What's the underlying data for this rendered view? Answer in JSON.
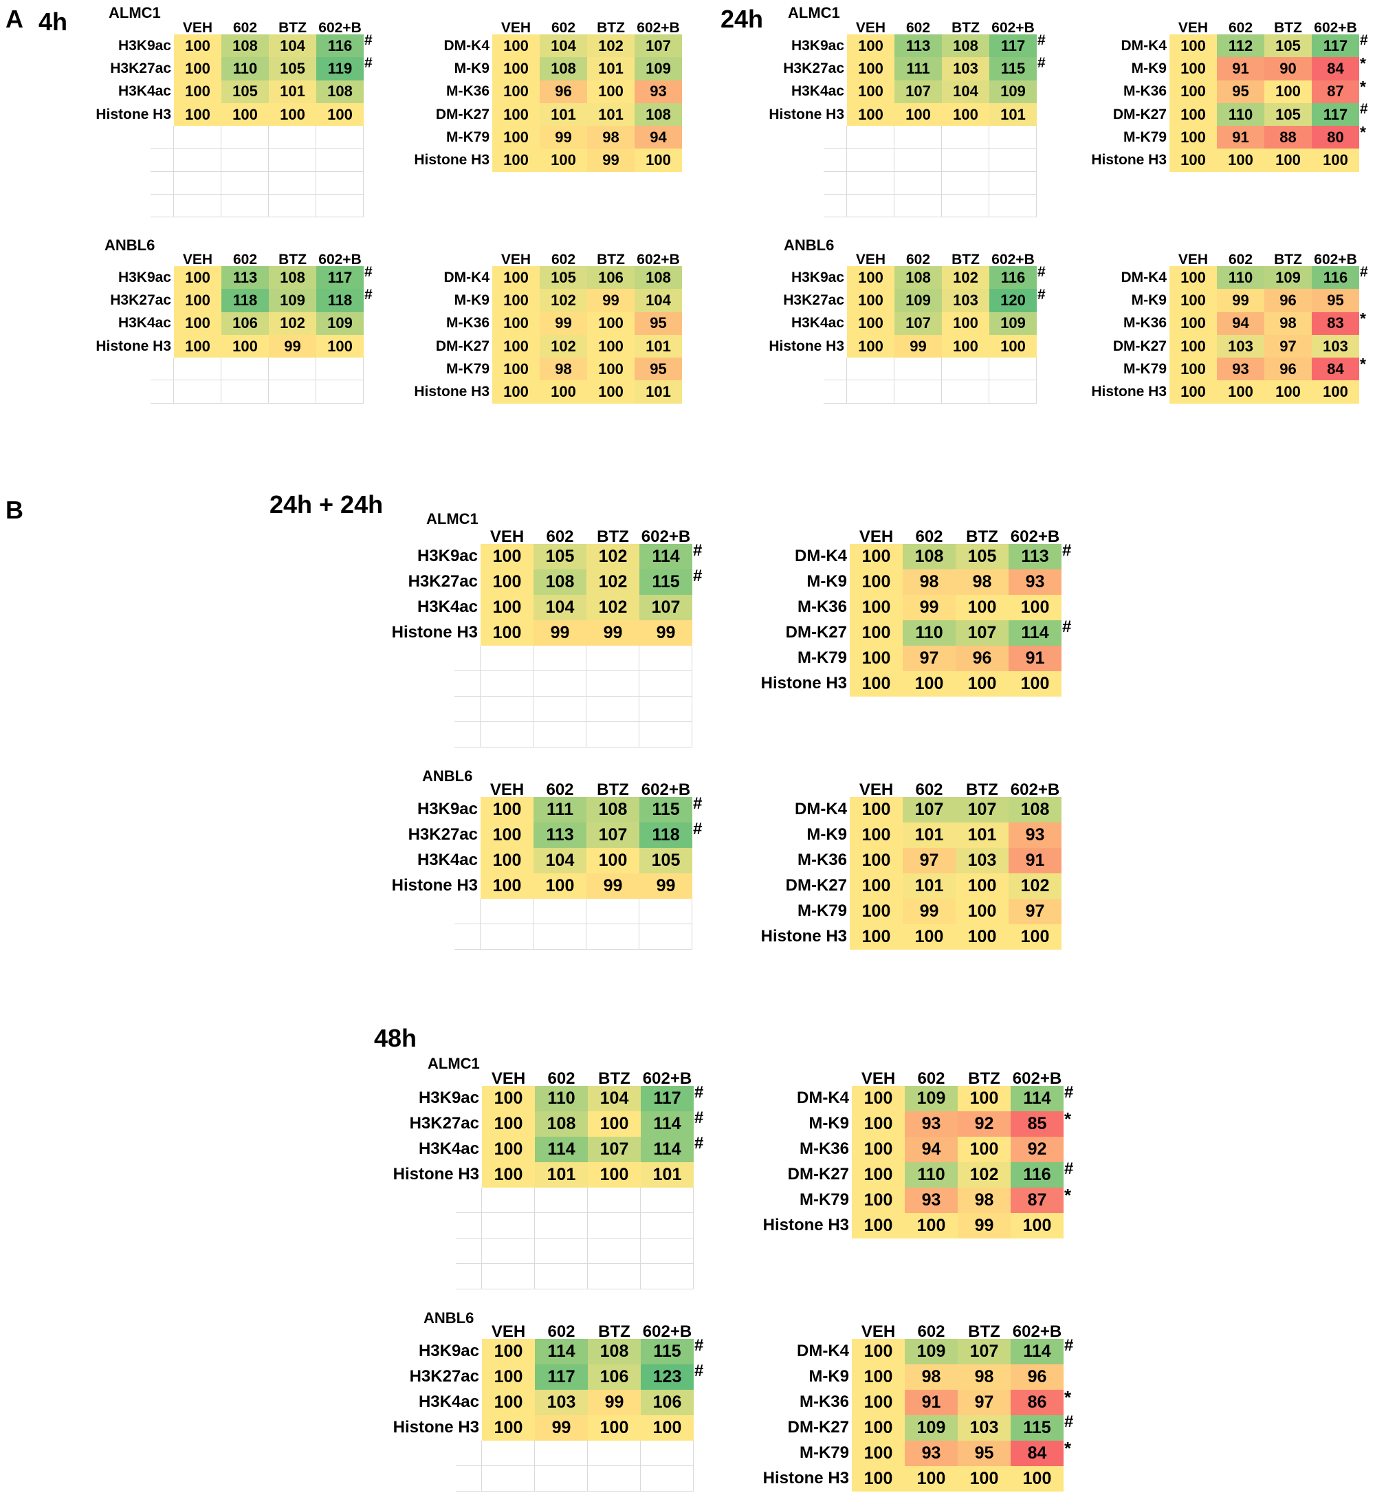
{
  "panels": {
    "a": "A",
    "b": "B"
  },
  "timepoints": {
    "t4h": "4h",
    "t24h": "24h",
    "t24h24h": "24h + 24h",
    "t48h": "48h"
  },
  "cell_lines": {
    "almc1": "ALMC1",
    "anbl6": "ANBL6"
  },
  "chart_data": [
    {
      "type": "heatmap",
      "panel": "A",
      "timepoint": "4h",
      "cell_line": "ALMC1",
      "columns": [
        "VEH",
        "602",
        "BTZ",
        "602+B"
      ],
      "rows": [
        "H3K9ac",
        "H3K27ac",
        "H3K4ac",
        "Histone H3"
      ],
      "values": [
        [
          100,
          108,
          104,
          116
        ],
        [
          100,
          110,
          105,
          119
        ],
        [
          100,
          105,
          101,
          108
        ],
        [
          100,
          100,
          100,
          100
        ]
      ],
      "marks": [
        [
          "",
          "",
          "",
          "#"
        ],
        [
          "",
          "",
          "",
          "#"
        ],
        [
          "",
          "",
          "",
          ""
        ],
        [
          "",
          "",
          "",
          ""
        ]
      ]
    },
    {
      "type": "heatmap",
      "panel": "A",
      "timepoint": "4h",
      "cell_line": "ALMC1",
      "columns": [
        "VEH",
        "602",
        "BTZ",
        "602+B"
      ],
      "rows": [
        "DM-K4",
        "M-K9",
        "M-K36",
        "DM-K27",
        "M-K79",
        "Histone H3"
      ],
      "values": [
        [
          100,
          104,
          102,
          107
        ],
        [
          100,
          108,
          101,
          109
        ],
        [
          100,
          96,
          100,
          93
        ],
        [
          100,
          101,
          101,
          108
        ],
        [
          100,
          99,
          98,
          94
        ],
        [
          100,
          100,
          99,
          100
        ]
      ],
      "marks": [
        [
          "",
          "",
          "",
          ""
        ],
        [
          "",
          "",
          "",
          ""
        ],
        [
          "",
          "",
          "",
          ""
        ],
        [
          "",
          "",
          "",
          ""
        ],
        [
          "",
          "",
          "",
          ""
        ],
        [
          "",
          "",
          "",
          ""
        ]
      ]
    },
    {
      "type": "heatmap",
      "panel": "A",
      "timepoint": "4h",
      "cell_line": "ANBL6",
      "columns": [
        "VEH",
        "602",
        "BTZ",
        "602+B"
      ],
      "rows": [
        "H3K9ac",
        "H3K27ac",
        "H3K4ac",
        "Histone H3"
      ],
      "values": [
        [
          100,
          113,
          108,
          117
        ],
        [
          100,
          118,
          109,
          118
        ],
        [
          100,
          106,
          102,
          109
        ],
        [
          100,
          100,
          99,
          100
        ]
      ],
      "marks": [
        [
          "",
          "#",
          "",
          "#"
        ],
        [
          "",
          "#",
          "",
          "#"
        ],
        [
          "",
          "",
          "",
          ""
        ],
        [
          "",
          "",
          "",
          ""
        ]
      ]
    },
    {
      "type": "heatmap",
      "panel": "A",
      "timepoint": "4h",
      "cell_line": "ANBL6",
      "columns": [
        "VEH",
        "602",
        "BTZ",
        "602+B"
      ],
      "rows": [
        "DM-K4",
        "M-K9",
        "M-K36",
        "DM-K27",
        "M-K79",
        "Histone H3"
      ],
      "values": [
        [
          100,
          105,
          106,
          108
        ],
        [
          100,
          102,
          99,
          104
        ],
        [
          100,
          99,
          100,
          95
        ],
        [
          100,
          102,
          100,
          101
        ],
        [
          100,
          98,
          100,
          95
        ],
        [
          100,
          100,
          100,
          101
        ]
      ],
      "marks": [
        [
          "",
          "",
          "",
          ""
        ],
        [
          "",
          "",
          "",
          ""
        ],
        [
          "",
          "",
          "",
          ""
        ],
        [
          "",
          "",
          "",
          ""
        ],
        [
          "",
          "",
          "",
          ""
        ],
        [
          "",
          "",
          "",
          ""
        ]
      ]
    },
    {
      "type": "heatmap",
      "panel": "A",
      "timepoint": "24h",
      "cell_line": "ALMC1",
      "columns": [
        "VEH",
        "602",
        "BTZ",
        "602+B"
      ],
      "rows": [
        "H3K9ac",
        "H3K27ac",
        "H3K4ac",
        "Histone H3"
      ],
      "values": [
        [
          100,
          113,
          108,
          117
        ],
        [
          100,
          111,
          103,
          115
        ],
        [
          100,
          107,
          104,
          109
        ],
        [
          100,
          100,
          100,
          101
        ]
      ],
      "marks": [
        [
          "",
          "#",
          "",
          "#"
        ],
        [
          "",
          "",
          "",
          "#"
        ],
        [
          "",
          "",
          "",
          ""
        ],
        [
          "",
          "",
          "",
          ""
        ]
      ]
    },
    {
      "type": "heatmap",
      "panel": "A",
      "timepoint": "24h",
      "cell_line": "ALMC1",
      "columns": [
        "VEH",
        "602",
        "BTZ",
        "602+B"
      ],
      "rows": [
        "DM-K4",
        "M-K9",
        "M-K36",
        "DM-K27",
        "M-K79",
        "Histone H3"
      ],
      "values": [
        [
          100,
          112,
          105,
          117
        ],
        [
          100,
          91,
          90,
          84
        ],
        [
          100,
          95,
          100,
          87
        ],
        [
          100,
          110,
          105,
          117
        ],
        [
          100,
          91,
          88,
          80
        ],
        [
          100,
          100,
          100,
          100
        ]
      ],
      "marks": [
        [
          "",
          "",
          "",
          "#"
        ],
        [
          "",
          "",
          "",
          "*"
        ],
        [
          "",
          "",
          "",
          "*"
        ],
        [
          "",
          "",
          "",
          "#"
        ],
        [
          "",
          "",
          "",
          "*"
        ],
        [
          "",
          "",
          "",
          ""
        ]
      ]
    },
    {
      "type": "heatmap",
      "panel": "A",
      "timepoint": "24h",
      "cell_line": "ANBL6",
      "columns": [
        "VEH",
        "602",
        "BTZ",
        "602+B"
      ],
      "rows": [
        "H3K9ac",
        "H3K27ac",
        "H3K4ac",
        "Histone H3"
      ],
      "values": [
        [
          100,
          108,
          102,
          116
        ],
        [
          100,
          109,
          103,
          120
        ],
        [
          100,
          107,
          100,
          109
        ],
        [
          100,
          99,
          100,
          100
        ]
      ],
      "marks": [
        [
          "",
          "",
          "",
          "#"
        ],
        [
          "",
          "",
          "",
          "#"
        ],
        [
          "",
          "",
          "",
          ""
        ],
        [
          "",
          "",
          "",
          ""
        ]
      ]
    },
    {
      "type": "heatmap",
      "panel": "A",
      "timepoint": "24h",
      "cell_line": "ANBL6",
      "columns": [
        "VEH",
        "602",
        "BTZ",
        "602+B"
      ],
      "rows": [
        "DM-K4",
        "M-K9",
        "M-K36",
        "DM-K27",
        "M-K79",
        "Histone H3"
      ],
      "values": [
        [
          100,
          110,
          109,
          116
        ],
        [
          100,
          99,
          96,
          95
        ],
        [
          100,
          94,
          98,
          83
        ],
        [
          100,
          103,
          97,
          103
        ],
        [
          100,
          93,
          96,
          84
        ],
        [
          100,
          100,
          100,
          100
        ]
      ],
      "marks": [
        [
          "",
          "",
          "",
          "#"
        ],
        [
          "",
          "",
          "",
          ""
        ],
        [
          "",
          "",
          "",
          "*"
        ],
        [
          "",
          "",
          "",
          ""
        ],
        [
          "",
          "",
          "",
          "*"
        ],
        [
          "",
          "",
          "",
          ""
        ]
      ]
    },
    {
      "type": "heatmap",
      "panel": "B",
      "timepoint": "24h + 24h",
      "cell_line": "ALMC1",
      "columns": [
        "VEH",
        "602",
        "BTZ",
        "602+B"
      ],
      "rows": [
        "H3K9ac",
        "H3K27ac",
        "H3K4ac",
        "Histone H3"
      ],
      "values": [
        [
          100,
          105,
          102,
          114
        ],
        [
          100,
          108,
          102,
          115
        ],
        [
          100,
          104,
          102,
          107
        ],
        [
          100,
          99,
          99,
          99
        ]
      ],
      "marks": [
        [
          "",
          "",
          "",
          "#"
        ],
        [
          "",
          "",
          "",
          "#"
        ],
        [
          "",
          "",
          "",
          ""
        ],
        [
          "",
          "",
          "",
          ""
        ]
      ]
    },
    {
      "type": "heatmap",
      "panel": "B",
      "timepoint": "24h + 24h",
      "cell_line": "ALMC1",
      "columns": [
        "VEH",
        "602",
        "BTZ",
        "602+B"
      ],
      "rows": [
        "DM-K4",
        "M-K9",
        "M-K36",
        "DM-K27",
        "M-K79",
        "Histone H3"
      ],
      "values": [
        [
          100,
          108,
          105,
          113
        ],
        [
          100,
          98,
          98,
          93
        ],
        [
          100,
          99,
          100,
          100
        ],
        [
          100,
          110,
          107,
          114
        ],
        [
          100,
          97,
          96,
          91
        ],
        [
          100,
          100,
          100,
          100
        ]
      ],
      "marks": [
        [
          "",
          "",
          "",
          "#"
        ],
        [
          "",
          "",
          "",
          ""
        ],
        [
          "",
          "",
          "",
          ""
        ],
        [
          "",
          "",
          "",
          "#"
        ],
        [
          "",
          "",
          "",
          ""
        ],
        [
          "",
          "",
          "",
          ""
        ]
      ]
    },
    {
      "type": "heatmap",
      "panel": "B",
      "timepoint": "24h + 24h",
      "cell_line": "ANBL6",
      "columns": [
        "VEH",
        "602",
        "BTZ",
        "602+B"
      ],
      "rows": [
        "H3K9ac",
        "H3K27ac",
        "H3K4ac",
        "Histone H3"
      ],
      "values": [
        [
          100,
          111,
          108,
          115
        ],
        [
          100,
          113,
          107,
          118
        ],
        [
          100,
          104,
          100,
          105
        ],
        [
          100,
          100,
          99,
          99
        ]
      ],
      "marks": [
        [
          "",
          "",
          "",
          "#"
        ],
        [
          "",
          "#",
          "",
          "#"
        ],
        [
          "",
          "",
          "",
          ""
        ],
        [
          "",
          "",
          "",
          ""
        ]
      ]
    },
    {
      "type": "heatmap",
      "panel": "B",
      "timepoint": "24h + 24h",
      "cell_line": "ANBL6",
      "columns": [
        "VEH",
        "602",
        "BTZ",
        "602+B"
      ],
      "rows": [
        "DM-K4",
        "M-K9",
        "M-K36",
        "DM-K27",
        "M-K79",
        "Histone H3"
      ],
      "values": [
        [
          100,
          107,
          107,
          108
        ],
        [
          100,
          101,
          101,
          93
        ],
        [
          100,
          97,
          103,
          91
        ],
        [
          100,
          101,
          100,
          102
        ],
        [
          100,
          99,
          100,
          97
        ],
        [
          100,
          100,
          100,
          100
        ]
      ],
      "marks": [
        [
          "",
          "",
          "",
          ""
        ],
        [
          "",
          "",
          "",
          ""
        ],
        [
          "",
          "",
          "",
          ""
        ],
        [
          "",
          "",
          "",
          ""
        ],
        [
          "",
          "",
          "",
          ""
        ],
        [
          "",
          "",
          "",
          ""
        ]
      ]
    },
    {
      "type": "heatmap",
      "panel": "B",
      "timepoint": "48h",
      "cell_line": "ALMC1",
      "columns": [
        "VEH",
        "602",
        "BTZ",
        "602+B"
      ],
      "rows": [
        "H3K9ac",
        "H3K27ac",
        "H3K4ac",
        "Histone H3"
      ],
      "values": [
        [
          100,
          110,
          104,
          117
        ],
        [
          100,
          108,
          100,
          114
        ],
        [
          100,
          114,
          107,
          114
        ],
        [
          100,
          101,
          100,
          101
        ]
      ],
      "marks": [
        [
          "",
          "",
          "",
          "#"
        ],
        [
          "",
          "",
          "",
          "#"
        ],
        [
          "",
          "#",
          "",
          "#"
        ],
        [
          "",
          "",
          "",
          ""
        ]
      ]
    },
    {
      "type": "heatmap",
      "panel": "B",
      "timepoint": "48h",
      "cell_line": "ALMC1",
      "columns": [
        "VEH",
        "602",
        "BTZ",
        "602+B"
      ],
      "rows": [
        "DM-K4",
        "M-K9",
        "M-K36",
        "DM-K27",
        "M-K79",
        "Histone H3"
      ],
      "values": [
        [
          100,
          109,
          100,
          114
        ],
        [
          100,
          93,
          92,
          85
        ],
        [
          100,
          94,
          100,
          92
        ],
        [
          100,
          110,
          102,
          116
        ],
        [
          100,
          93,
          98,
          87
        ],
        [
          100,
          100,
          99,
          100
        ]
      ],
      "marks": [
        [
          "",
          "",
          "",
          "#"
        ],
        [
          "",
          "",
          "",
          "*"
        ],
        [
          "",
          "",
          "",
          ""
        ],
        [
          "",
          "",
          "",
          "#"
        ],
        [
          "",
          "",
          "",
          "*"
        ],
        [
          "",
          "",
          "",
          ""
        ]
      ]
    },
    {
      "type": "heatmap",
      "panel": "B",
      "timepoint": "48h",
      "cell_line": "ANBL6",
      "columns": [
        "VEH",
        "602",
        "BTZ",
        "602+B"
      ],
      "rows": [
        "H3K9ac",
        "H3K27ac",
        "H3K4ac",
        "Histone H3"
      ],
      "values": [
        [
          100,
          114,
          108,
          115
        ],
        [
          100,
          117,
          106,
          123
        ],
        [
          100,
          103,
          99,
          106
        ],
        [
          100,
          99,
          100,
          100
        ]
      ],
      "marks": [
        [
          "",
          "#",
          "",
          "#"
        ],
        [
          "",
          "#",
          "",
          "#"
        ],
        [
          "",
          "",
          "",
          ""
        ],
        [
          "",
          "",
          "",
          ""
        ]
      ]
    },
    {
      "type": "heatmap",
      "panel": "B",
      "timepoint": "48h",
      "cell_line": "ANBL6",
      "columns": [
        "VEH",
        "602",
        "BTZ",
        "602+B"
      ],
      "rows": [
        "DM-K4",
        "M-K9",
        "M-K36",
        "DM-K27",
        "M-K79",
        "Histone H3"
      ],
      "values": [
        [
          100,
          109,
          107,
          114
        ],
        [
          100,
          98,
          98,
          96
        ],
        [
          100,
          91,
          97,
          86
        ],
        [
          100,
          109,
          103,
          115
        ],
        [
          100,
          93,
          95,
          84
        ],
        [
          100,
          100,
          100,
          100
        ]
      ],
      "marks": [
        [
          "",
          "",
          "",
          "#"
        ],
        [
          "",
          "",
          "",
          ""
        ],
        [
          "",
          "",
          "",
          "*"
        ],
        [
          "",
          "",
          "",
          "#"
        ],
        [
          "",
          "",
          "",
          "*"
        ],
        [
          "",
          "",
          "",
          ""
        ]
      ]
    }
  ]
}
